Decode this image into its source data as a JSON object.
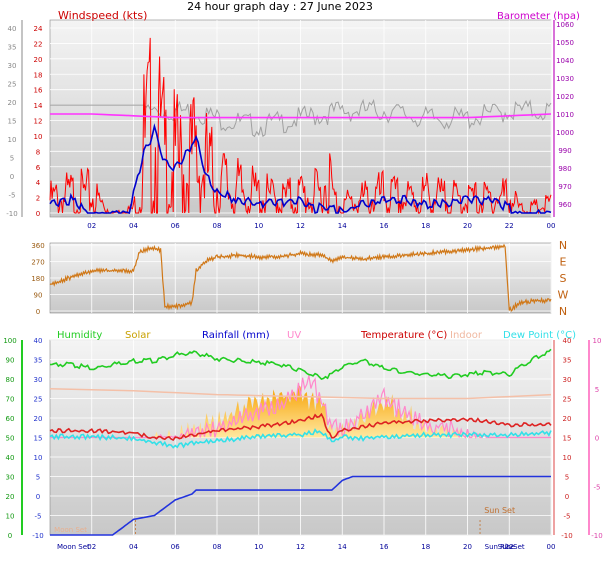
{
  "title": "24 hour graph day : 27 June 2023",
  "colors": {
    "wind": "#ff0000",
    "gust_avg": "#0000cc",
    "baro": "#ff33ff",
    "dir": "#d07818",
    "humidity": "#22cc22",
    "solar": "#f0a020",
    "rain": "#2233dd",
    "uv": "#ff88cc",
    "temp": "#dd2222",
    "indoor": "#f4c0a8",
    "dew": "#33e0e8",
    "grid": "#ffffff",
    "plot_bg": "#dcdcdc"
  },
  "chart_data": [
    {
      "type": "line",
      "title": "",
      "labels": {
        "left": "Windspeed (kts)",
        "right": "Barometer (hpa)"
      },
      "x_ticks": [
        "02",
        "04",
        "06",
        "08",
        "10",
        "12",
        "14",
        "16",
        "18",
        "20",
        "22",
        "00"
      ],
      "y_left": {
        "ticks": [
          "0",
          "2",
          "4",
          "6",
          "8",
          "10",
          "12",
          "14",
          "16",
          "18",
          "20",
          "22",
          "24"
        ],
        "range": [
          0,
          24
        ]
      },
      "y_outer": {
        "ticks": [
          "-10",
          "-5",
          "0",
          "5",
          "10",
          "15",
          "20",
          "25",
          "30",
          "35",
          "40"
        ],
        "range": [
          -10,
          40
        ]
      },
      "y_right": {
        "ticks": [
          "980",
          "990",
          "1000",
          "1010",
          "1020",
          "1030",
          "1040",
          "1050",
          "1060",
          "960",
          "970"
        ],
        "range": [
          955,
          1060
        ]
      },
      "series": [
        {
          "name": "Windspeed (kts)",
          "axis": "left",
          "x": [
            0,
            1,
            1.5,
            2,
            3,
            4,
            4.5,
            5,
            5.5,
            6,
            6.5,
            7,
            8,
            9,
            10,
            11,
            12,
            12.5,
            13,
            13.3,
            13.6,
            14,
            15,
            16,
            17,
            18,
            19,
            20,
            21,
            22,
            22.5,
            23,
            24
          ],
          "y": [
            3,
            4,
            4,
            4,
            0,
            1,
            14,
            18,
            12,
            11,
            10,
            12,
            7,
            5,
            4,
            3,
            4,
            4,
            4,
            9,
            3,
            2,
            3,
            4,
            3,
            4,
            3,
            3,
            3,
            4,
            1,
            1,
            2
          ]
        },
        {
          "name": "Average",
          "axis": "left",
          "x": [
            0,
            1,
            1.5,
            2,
            3,
            3.8,
            4,
            4.5,
            5,
            5.5,
            6,
            6.5,
            7,
            7.5,
            8,
            9,
            10,
            11,
            12,
            12.5,
            13,
            13.5,
            14,
            15,
            16,
            17,
            18,
            19,
            20,
            21,
            22,
            22.5,
            23,
            24
          ],
          "y": [
            1.5,
            2,
            1,
            0,
            0,
            0,
            3,
            8,
            11,
            7,
            6,
            8,
            10,
            5,
            3,
            2,
            1.5,
            1.5,
            2,
            0.8,
            1,
            0.8,
            0.5,
            1.5,
            2,
            2,
            1.5,
            1.5,
            2,
            2,
            1,
            0,
            0,
            0.5
          ]
        },
        {
          "name": "Barometer (hpa)",
          "axis": "right",
          "x": [
            0,
            2,
            4,
            6,
            8,
            10,
            12,
            14,
            16,
            18,
            20,
            22,
            24
          ],
          "y": [
            1010,
            1010,
            1009,
            1008,
            1008,
            1008,
            1008,
            1008,
            1008,
            1008,
            1008,
            1009,
            1010
          ]
        },
        {
          "name": "Gust trace (grey)",
          "axis": "left",
          "x": [
            0,
            4,
            6,
            7,
            8,
            10,
            12,
            14,
            16,
            18,
            20,
            22,
            24
          ],
          "y": [
            14,
            14,
            14,
            14,
            13,
            12,
            13,
            14,
            14,
            13,
            13,
            14,
            14
          ]
        }
      ]
    },
    {
      "type": "line",
      "title": "",
      "y_ticks": [
        "0",
        "90",
        "180",
        "270",
        "360"
      ],
      "right_labels": [
        "N",
        "W",
        "S",
        "E",
        "N"
      ],
      "range": [
        0,
        360
      ],
      "series": [
        {
          "name": "Wind direction",
          "x": [
            0,
            0.5,
            1,
            1.5,
            2,
            3,
            4,
            4.3,
            4.8,
            5.3,
            5.5,
            6,
            6.8,
            7,
            7.5,
            8,
            9,
            10,
            11,
            12,
            13,
            13.5,
            14,
            15,
            16,
            17,
            18,
            19,
            20,
            21,
            21.8,
            22,
            22.5,
            23,
            24
          ],
          "y": [
            150,
            170,
            190,
            210,
            225,
            225,
            225,
            330,
            350,
            340,
            30,
            30,
            50,
            230,
            280,
            300,
            310,
            300,
            300,
            320,
            310,
            280,
            300,
            290,
            300,
            310,
            320,
            330,
            340,
            350,
            360,
            10,
            50,
            60,
            65
          ]
        }
      ]
    },
    {
      "type": "line",
      "title": "",
      "legend": [
        "Humidity",
        "Solar",
        "Rainfall (mm)",
        "UV",
        "Temperature (°C)",
        "Indoor",
        "Dew Point (°C)"
      ],
      "moon_label": "Moon Set",
      "sun_set_label": "Sun Set",
      "sun_rise_label": "Sun Rise",
      "sun_set_x_label": "Sun Set",
      "y_left_humidity": {
        "ticks": [
          "0",
          "10",
          "20",
          "30",
          "40",
          "50",
          "60",
          "70",
          "80",
          "90",
          "100"
        ],
        "range": [
          0,
          100
        ]
      },
      "y_temp": {
        "ticks": [
          "-10",
          "-5",
          "0",
          "5",
          "10",
          "15",
          "20",
          "25",
          "30",
          "35",
          "40"
        ],
        "range": [
          -10,
          40
        ]
      },
      "y_uv": {
        "ticks": [
          "-10",
          "-5",
          "0",
          "5",
          "10"
        ],
        "range": [
          -10,
          10
        ]
      },
      "y_rain_axis": {
        "ticks": [
          "-10",
          "-5",
          "0",
          "5",
          "10",
          "15",
          "20",
          "25",
          "30",
          "35",
          "40"
        ]
      },
      "series": [
        {
          "name": "Humidity",
          "x": [
            0,
            1,
            2,
            3,
            4,
            5,
            6,
            7,
            8,
            9,
            10,
            11,
            12,
            13,
            13.5,
            14,
            15,
            16,
            17,
            18,
            19,
            20,
            21,
            22,
            23,
            24
          ],
          "y": [
            88,
            88,
            86,
            88,
            90,
            90,
            93,
            94,
            91,
            90,
            89,
            88,
            85,
            81,
            83,
            87,
            90,
            86,
            84,
            83,
            82,
            83,
            84,
            83,
            90,
            95
          ]
        },
        {
          "name": "Indoor",
          "x": [
            0,
            4,
            8,
            12,
            16,
            20,
            24
          ],
          "y": [
            75,
            74,
            72,
            71,
            70,
            70,
            72
          ]
        },
        {
          "name": "Temperature (°C)",
          "x": [
            0,
            2,
            4,
            5,
            6,
            7,
            8,
            10,
            12,
            13,
            13.5,
            14,
            15,
            16,
            18,
            20,
            22,
            24
          ],
          "y": [
            17,
            17,
            16.5,
            15,
            15,
            16,
            17,
            18,
            19.5,
            21,
            15,
            17,
            18,
            19,
            19.5,
            20,
            18.5,
            18.5
          ]
        },
        {
          "name": "Dew Point (°C)",
          "x": [
            0,
            2,
            4,
            5,
            6,
            7,
            8,
            10,
            12,
            13,
            13.5,
            14,
            15,
            16,
            18,
            20,
            22,
            24
          ],
          "y": [
            15.5,
            15.5,
            15,
            14,
            13,
            14,
            14.5,
            15.5,
            16,
            17,
            14.5,
            15.5,
            15,
            15.5,
            16,
            16,
            16,
            16.5
          ]
        },
        {
          "name": "Rainfall (mm)",
          "x": [
            0,
            3,
            4,
            5,
            6,
            6.8,
            7,
            12,
            13.5,
            14,
            14.5,
            23.5,
            24
          ],
          "y": [
            0,
            0,
            0.8,
            1,
            1.8,
            2.1,
            2.3,
            2.3,
            2.3,
            2.8,
            3.0,
            3.0,
            3.0
          ]
        },
        {
          "name": "UV",
          "x": [
            0,
            5,
            6,
            7,
            8,
            9,
            10,
            11,
            12,
            12.5,
            13,
            13.5,
            14,
            15,
            16,
            17,
            18,
            19,
            20,
            21,
            24
          ],
          "y": [
            0,
            0,
            0.3,
            0.7,
            1.5,
            2.5,
            3,
            4,
            5.5,
            6.5,
            4,
            1.5,
            1.5,
            3,
            4.5,
            3,
            2,
            1.5,
            0.5,
            0,
            0
          ]
        },
        {
          "name": "Solar",
          "x": [
            0,
            5,
            6,
            7,
            8,
            9,
            10,
            11,
            12,
            13,
            13.5,
            14,
            15,
            16,
            17,
            18,
            19,
            20,
            21,
            24
          ],
          "y": [
            0,
            0,
            0.5,
            1.5,
            2.5,
            3.5,
            4,
            4.5,
            5,
            4,
            1,
            1,
            3,
            4.5,
            3,
            2,
            1,
            0.3,
            0,
            0
          ]
        }
      ]
    }
  ]
}
